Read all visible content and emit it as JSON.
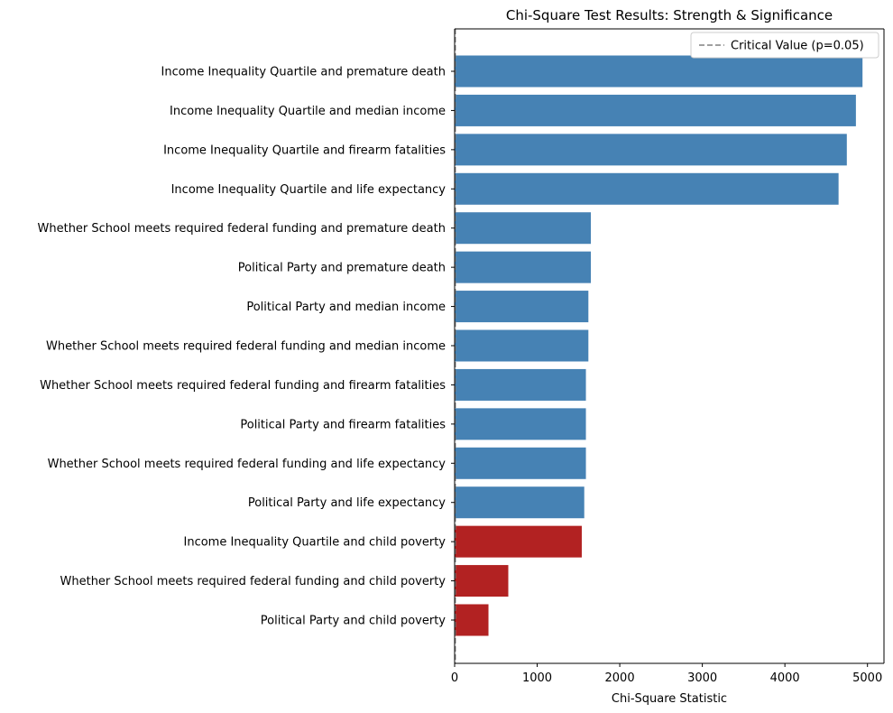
{
  "chart_data": {
    "type": "bar",
    "orientation": "horizontal",
    "title": "Chi-Square Test Results: Strength & Significance",
    "xlabel": "Chi-Square Statistic",
    "ylabel": "",
    "xlim": [
      0,
      5200
    ],
    "xticks": [
      0,
      1000,
      2000,
      3000,
      4000,
      5000
    ],
    "xtick_labels": [
      "0",
      "1000",
      "2000",
      "3000",
      "4000",
      "5000"
    ],
    "grid": false,
    "legend_position": "top-right",
    "colors": {
      "significant": "#4682b4",
      "other": "#b22222",
      "critical_line": "#808080"
    },
    "critical_value": {
      "label": "Critical Value (p=0.05)",
      "value": 7.8
    },
    "categories": [
      "Income Inequality Quartile and premature death",
      "Income Inequality Quartile and median income",
      "Income Inequality Quartile and firearm fatalities",
      "Income Inequality Quartile and life expectancy",
      "Whether School meets required federal funding and premature death",
      "Political Party and premature death",
      "Political Party and median income",
      "Whether School meets required federal funding and median income",
      "Whether School meets required federal funding and firearm fatalities",
      "Political Party and firearm fatalities",
      "Whether School meets required federal funding and life expectancy",
      "Political Party and life expectancy",
      "Income Inequality Quartile and child poverty",
      "Whether School meets required federal funding and child poverty",
      "Political Party and child poverty"
    ],
    "values": [
      4940,
      4860,
      4750,
      4650,
      1650,
      1650,
      1620,
      1620,
      1590,
      1590,
      1590,
      1570,
      1540,
      650,
      410
    ],
    "bar_colors": [
      "#4682b4",
      "#4682b4",
      "#4682b4",
      "#4682b4",
      "#4682b4",
      "#4682b4",
      "#4682b4",
      "#4682b4",
      "#4682b4",
      "#4682b4",
      "#4682b4",
      "#4682b4",
      "#b22222",
      "#b22222",
      "#b22222"
    ]
  }
}
